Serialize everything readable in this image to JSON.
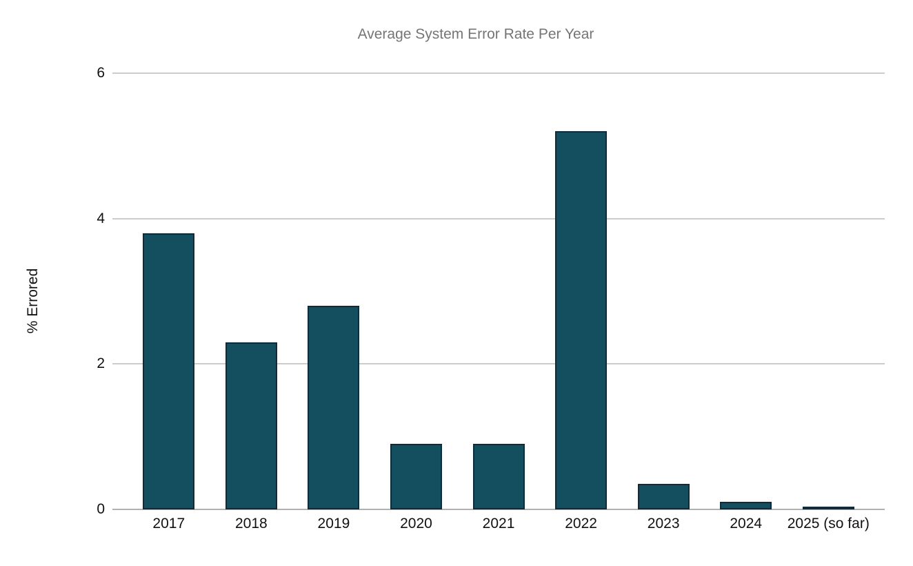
{
  "page": {
    "background_color": "#ffffff"
  },
  "chart_data": {
    "type": "bar",
    "title": "Average System Error Rate Per Year",
    "xlabel": "",
    "ylabel": "% Errored",
    "categories": [
      "2017",
      "2018",
      "2019",
      "2020",
      "2021",
      "2022",
      "2023",
      "2024",
      "2025 (so far)"
    ],
    "values": [
      3.8,
      2.3,
      2.8,
      0.9,
      0.9,
      5.2,
      0.35,
      0.1,
      0.03
    ],
    "ylim": [
      0,
      6
    ],
    "yticks": [
      0,
      2,
      4,
      6
    ],
    "grid": true,
    "legend": false,
    "bar_color": "#134f5f",
    "bar_border_color": "#0c2c3c",
    "title_color": "#757575",
    "axis_text_color": "#111111",
    "gridline_color": "#cccccc",
    "baseline_color": "#b0b0b0"
  }
}
